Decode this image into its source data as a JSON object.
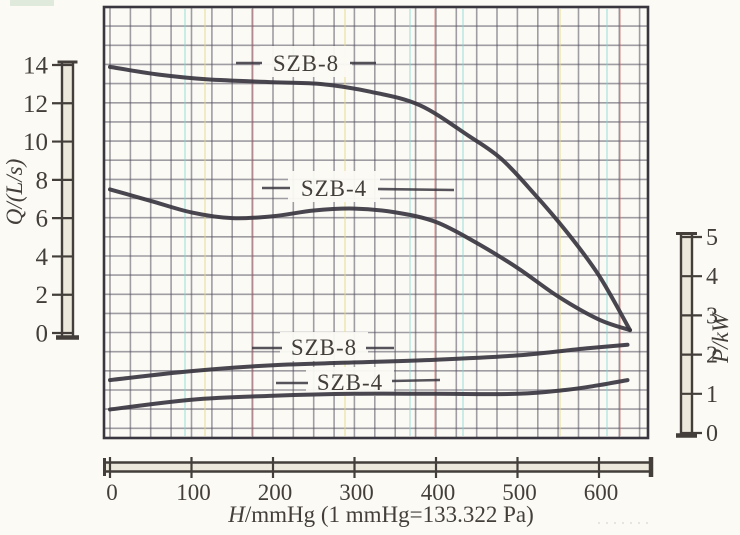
{
  "chart_data": {
    "type": "line",
    "title": "",
    "description": "Pump performance curves: flow rate Q and shaft power P versus vacuum H for SZB-4 and SZB-8 water-ring vacuum pumps, drawn on graph paper",
    "x_axis": {
      "label": "H/mmHg (1 mmHg=133.322 Pa)",
      "label_var": "H",
      "label_rest": "/mmHg (1 mmHg=133.322 Pa)",
      "ticks": [
        0,
        100,
        200,
        300,
        400,
        500,
        600
      ],
      "range": [
        0,
        665
      ]
    },
    "y_axis_left": {
      "label": "Q/(L/s)",
      "ticks": [
        0,
        2,
        4,
        6,
        8,
        10,
        12,
        14
      ],
      "range": [
        0,
        14
      ]
    },
    "y_axis_right": {
      "label": "P/kW",
      "ticks": [
        0,
        1,
        2,
        3,
        4,
        5
      ],
      "range": [
        0,
        5
      ]
    },
    "grid": true,
    "legend_position": "inline-labels",
    "series": [
      {
        "label": "SZB-8",
        "quantity": "Q",
        "axis": "left",
        "units": "L/s vs mmHg",
        "points": [
          [
            0,
            13.9
          ],
          [
            60,
            13.5
          ],
          [
            120,
            13.25
          ],
          [
            200,
            13.1
          ],
          [
            260,
            13.0
          ],
          [
            320,
            12.6
          ],
          [
            380,
            11.9
          ],
          [
            440,
            10.3
          ],
          [
            480,
            9.1
          ],
          [
            520,
            7.3
          ],
          [
            560,
            5.3
          ],
          [
            600,
            3.0
          ],
          [
            638,
            0.15
          ]
        ]
      },
      {
        "label": "SZB-4",
        "quantity": "Q",
        "axis": "left",
        "units": "L/s vs mmHg",
        "points": [
          [
            0,
            7.5
          ],
          [
            50,
            6.9
          ],
          [
            100,
            6.3
          ],
          [
            150,
            6.0
          ],
          [
            200,
            6.1
          ],
          [
            250,
            6.4
          ],
          [
            300,
            6.5
          ],
          [
            350,
            6.3
          ],
          [
            400,
            5.8
          ],
          [
            450,
            4.7
          ],
          [
            500,
            3.4
          ],
          [
            550,
            1.9
          ],
          [
            600,
            0.7
          ],
          [
            638,
            0.15
          ]
        ]
      },
      {
        "label": "SZB-8",
        "quantity": "P",
        "axis": "right",
        "units": "kW vs mmHg",
        "points": [
          [
            0,
            1.35
          ],
          [
            100,
            1.58
          ],
          [
            200,
            1.73
          ],
          [
            300,
            1.8
          ],
          [
            400,
            1.87
          ],
          [
            500,
            1.98
          ],
          [
            580,
            2.15
          ],
          [
            635,
            2.25
          ]
        ]
      },
      {
        "label": "SZB-4",
        "quantity": "P",
        "axis": "right",
        "units": "kW vs mmHg",
        "points": [
          [
            0,
            0.6
          ],
          [
            100,
            0.85
          ],
          [
            200,
            0.95
          ],
          [
            300,
            1.0
          ],
          [
            400,
            1.0
          ],
          [
            500,
            1.0
          ],
          [
            560,
            1.1
          ],
          [
            600,
            1.22
          ],
          [
            635,
            1.35
          ]
        ]
      }
    ]
  },
  "colors": {
    "curve": "#3a3640",
    "grid": "#555060",
    "paper": "#fbfaf4",
    "ink": "#433e3a",
    "ruler_fill": "#e6e1d2"
  }
}
